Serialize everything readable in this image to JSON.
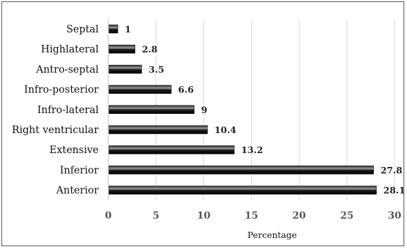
{
  "chart_data": {
    "type": "bar",
    "orientation": "horizontal",
    "title": "",
    "xlabel": "Percentage",
    "ylabel": "",
    "categories": [
      "Septal",
      "Highlateral",
      "Antro-septal",
      "Infro-posterior",
      "Infro-lateral",
      "Right ventricular",
      "Extensive",
      "Inferior",
      "Anterior"
    ],
    "values": [
      1,
      2.8,
      3.5,
      6.6,
      9,
      10.4,
      13.2,
      27.8,
      28.1
    ],
    "value_labels": [
      "1",
      "2.8",
      "3.5",
      "6.6",
      "9",
      "10.4",
      "13.2",
      "27.8",
      "28.1"
    ],
    "xlim": [
      0,
      30
    ],
    "xticks": [
      0,
      5,
      10,
      15,
      20,
      25,
      30
    ],
    "xtick_labels": [
      "0",
      "5",
      "10",
      "15",
      "20",
      "25",
      "30"
    ],
    "grid": "vertical",
    "legend": "none",
    "colors": {
      "bar": "#111111",
      "bar_highlight": "#9a9a9a",
      "grid": "#d9d9d9"
    }
  }
}
